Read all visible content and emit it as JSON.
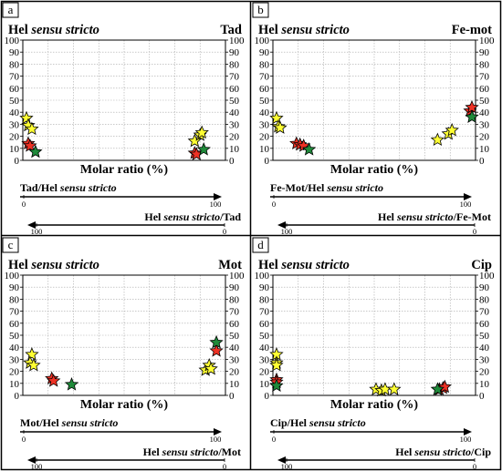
{
  "figure": {
    "colors": {
      "yellow": "#ffff33",
      "red": "#ee3124",
      "green": "#1f8a3a",
      "grid": "#a9a9a9",
      "frame": "#000000"
    }
  },
  "chart_data": [
    {
      "panel": "a",
      "type": "scatter",
      "left_title_plain": "Hel ",
      "left_title_italic": "sensu stricto",
      "right_title": "Tad",
      "xlabel": "Molar ratio (%)",
      "ylim": [
        0,
        100
      ],
      "yticks": [
        "0",
        "10",
        "20",
        "30",
        "40",
        "50",
        "60",
        "70",
        "80",
        "90",
        "100"
      ],
      "axis1_label_plain": "Tad/Hel ",
      "axis1_label_italic": "sensu stricto",
      "axis1_ticks": [
        "0",
        "100"
      ],
      "axis2_label_plain": "Hel ",
      "axis2_label_italic": "sensu stricto",
      "axis2_label_suffix": "/Tad",
      "axis2_ticks": [
        "100",
        "0"
      ],
      "series": [
        {
          "color": "yellow",
          "points": [
            [
              2,
              35
            ],
            [
              3,
              29
            ],
            [
              5,
              26
            ],
            [
              95,
              16
            ],
            [
              98,
              21
            ],
            [
              99,
              23
            ]
          ]
        },
        {
          "color": "red",
          "points": [
            [
              3,
              14
            ],
            [
              4,
              12
            ],
            [
              95,
              6
            ],
            [
              96,
              5
            ]
          ]
        },
        {
          "color": "green",
          "points": [
            [
              7,
              7
            ],
            [
              100,
              9
            ]
          ]
        }
      ]
    },
    {
      "panel": "b",
      "type": "scatter",
      "left_title_plain": "Hel ",
      "left_title_italic": "sensu stricto",
      "right_title": "Fe-mot",
      "xlabel": "Molar ratio (%)",
      "ylim": [
        0,
        100
      ],
      "yticks": [
        "0",
        "10",
        "20",
        "30",
        "40",
        "50",
        "60",
        "70",
        "80",
        "90",
        "100"
      ],
      "axis1_label_plain": "Fe-Mot/Hel ",
      "axis1_label_italic": "sensu stricto",
      "axis1_ticks": [
        "0",
        "100"
      ],
      "axis2_label_plain": "Hel ",
      "axis2_label_italic": "sensu stricto",
      "axis2_label_suffix": "/Fe-Mot",
      "axis2_ticks": [
        "100",
        "0"
      ],
      "series": [
        {
          "color": "yellow",
          "points": [
            [
              2,
              35
            ],
            [
              3,
              28
            ],
            [
              4,
              27
            ],
            [
              91,
              17
            ],
            [
              97,
              22
            ],
            [
              99,
              25
            ]
          ]
        },
        {
          "color": "red",
          "points": [
            [
              13,
              14
            ],
            [
              15,
              13
            ],
            [
              17,
              12
            ],
            [
              109,
              41
            ],
            [
              110,
              44
            ]
          ]
        },
        {
          "color": "green",
          "points": [
            [
              20,
              9
            ],
            [
              110,
              36
            ]
          ]
        }
      ]
    },
    {
      "panel": "c",
      "type": "scatter",
      "left_title_plain": "Hel ",
      "left_title_italic": "sensu stricto",
      "right_title": "Mot",
      "xlabel": "Molar ratio (%)",
      "ylim": [
        0,
        100
      ],
      "yticks": [
        "0",
        "10",
        "20",
        "30",
        "40",
        "50",
        "60",
        "70",
        "80",
        "90",
        "100"
      ],
      "axis1_label_plain": "Mot/Hel ",
      "axis1_label_italic": "sensu stricto",
      "axis1_ticks": [
        "0",
        "100"
      ],
      "axis2_label_plain": "Hel ",
      "axis2_label_italic": "sensu stricto",
      "axis2_label_suffix": "/Mot",
      "axis2_ticks": [
        "100",
        "0"
      ],
      "series": [
        {
          "color": "yellow",
          "points": [
            [
              5,
              34
            ],
            [
              4,
              27
            ],
            [
              6,
              25
            ],
            [
              101,
              21
            ],
            [
              103,
              25
            ],
            [
              104,
              22
            ]
          ]
        },
        {
          "color": "red",
          "points": [
            [
              16,
              14
            ],
            [
              17,
              12
            ],
            [
              107,
              37
            ]
          ]
        },
        {
          "color": "green",
          "points": [
            [
              27,
              9
            ],
            [
              107,
              44
            ]
          ]
        }
      ]
    },
    {
      "panel": "d",
      "type": "scatter",
      "left_title_plain": "Hel ",
      "left_title_italic": "sensu stricto",
      "right_title": "Cip",
      "xlabel": "Molar ratio (%)",
      "ylim": [
        0,
        100
      ],
      "yticks": [
        "0",
        "10",
        "20",
        "30",
        "40",
        "50",
        "60",
        "70",
        "80",
        "90",
        "100"
      ],
      "axis1_label_plain": "Cip/Hel ",
      "axis1_label_italic": "sensu stricto",
      "axis1_ticks": [
        "0",
        "100"
      ],
      "axis2_label_plain": "Hel ",
      "axis2_label_italic": "sensu stricto",
      "axis2_label_suffix": "/Cip",
      "axis2_ticks": [
        "100",
        "0"
      ],
      "series": [
        {
          "color": "yellow",
          "points": [
            [
              2,
              34
            ],
            [
              2,
              27
            ],
            [
              2,
              25
            ],
            [
              57,
              5
            ],
            [
              60,
              4
            ],
            [
              62,
              5
            ],
            [
              67,
              5
            ]
          ]
        },
        {
          "color": "red",
          "points": [
            [
              2,
              13
            ],
            [
              2,
              11
            ],
            [
              92,
              5
            ],
            [
              94,
              6
            ],
            [
              95,
              7
            ]
          ]
        },
        {
          "color": "green",
          "points": [
            [
              2,
              8
            ],
            [
              91,
              5
            ]
          ]
        }
      ]
    }
  ]
}
